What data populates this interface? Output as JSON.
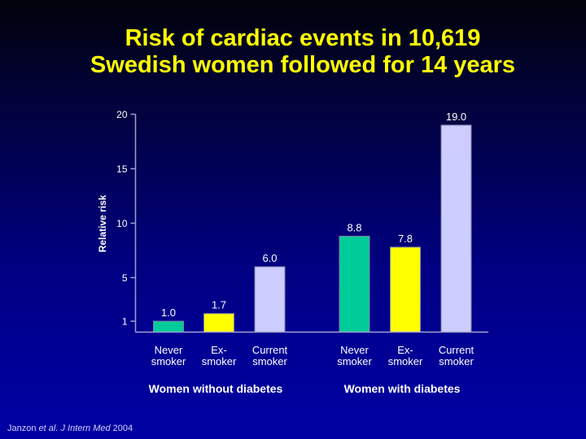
{
  "slide": {
    "title_line1": "Risk of cardiac events in 10,619",
    "title_line2": "Swedish women followed for 14 years",
    "citation": {
      "author": "Janzon",
      "etal": "et al.",
      "journal": "J Intern Med",
      "year": "2004"
    }
  },
  "colors": {
    "title": "#ffff00",
    "never_smoker": "#00cc99",
    "ex_smoker": "#ffff00",
    "current_smoker": "#ccccff",
    "axis": "#a0a0d0",
    "text": "#ffffff"
  },
  "chart_data": {
    "type": "bar",
    "title": "Risk of cardiac events in 10,619 Swedish women followed for 14 years",
    "xlabel": "",
    "ylabel": "Relative risk",
    "ylim": [
      0,
      20
    ],
    "yticks": [
      1,
      5,
      10,
      15,
      20
    ],
    "grid": false,
    "legend": "none",
    "groups": [
      {
        "name": "Women without diabetes",
        "bars": [
          {
            "category_line1": "Never",
            "category_line2": "smoker",
            "value": 1.0,
            "label": "1.0",
            "series": "never_smoker"
          },
          {
            "category_line1": "Ex-",
            "category_line2": "smoker",
            "value": 1.7,
            "label": "1.7",
            "series": "ex_smoker"
          },
          {
            "category_line1": "Current",
            "category_line2": "smoker",
            "value": 6.0,
            "label": "6.0",
            "series": "current_smoker"
          }
        ]
      },
      {
        "name": "Women with diabetes",
        "bars": [
          {
            "category_line1": "Never",
            "category_line2": "smoker",
            "value": 8.8,
            "label": "8.8",
            "series": "never_smoker"
          },
          {
            "category_line1": "Ex-",
            "category_line2": "smoker",
            "value": 7.8,
            "label": "7.8",
            "series": "ex_smoker"
          },
          {
            "category_line1": "Current",
            "category_line2": "smoker",
            "value": 19.0,
            "label": "19.0",
            "series": "current_smoker"
          }
        ]
      }
    ]
  }
}
